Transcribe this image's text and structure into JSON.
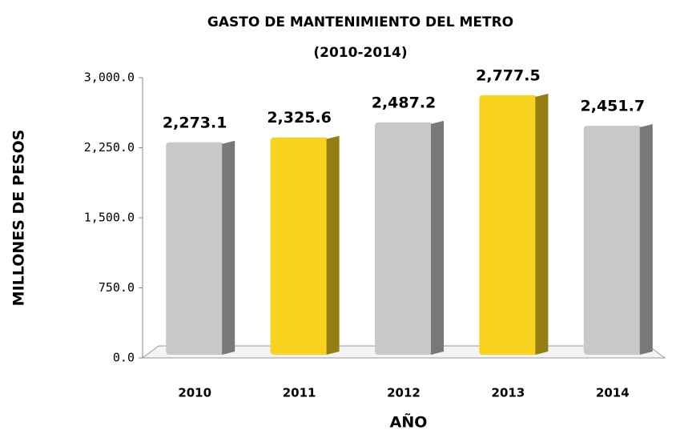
{
  "chart_data": {
    "type": "bar",
    "title": "GASTO DE MANTENIMIENTO DEL METRO",
    "subtitle": "(2010-2014)",
    "x_label": "AÑO",
    "y_label": "MILLONES DE PESOS",
    "categories": [
      "2010",
      "2011",
      "2012",
      "2013",
      "2014"
    ],
    "values": [
      2273.1,
      2325.6,
      2487.2,
      2777.5,
      2451.7
    ],
    "value_labels": [
      "2,273.1",
      "2,325.6",
      "2,487.2",
      "2,777.5",
      "2,451.7"
    ],
    "colors": [
      "#c8c8c8",
      "#f7d21e",
      "#c8c8c8",
      "#f7d21e",
      "#c8c8c8"
    ],
    "ylim": [
      0,
      3000
    ],
    "yticks": [
      {
        "value": 0,
        "label": "0.0"
      },
      {
        "value": 750,
        "label": "750.0"
      },
      {
        "value": 1500,
        "label": "1,500.0"
      },
      {
        "value": 2250,
        "label": "2,250.0"
      },
      {
        "value": 3000,
        "label": "3,000.0"
      }
    ],
    "grid": false
  }
}
